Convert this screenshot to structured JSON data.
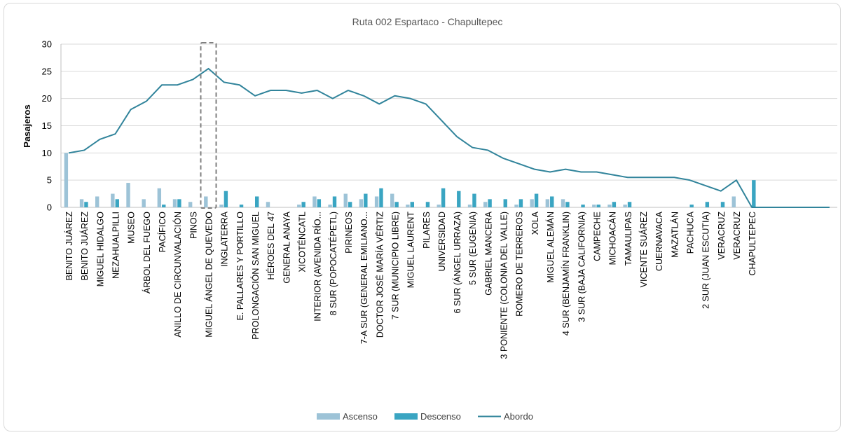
{
  "chart_data": {
    "type": "bar",
    "title": "Ruta 002 Espartaco - Chapultepec",
    "xlabel": "",
    "ylabel": "Pasajeros",
    "ylim": [
      0,
      30
    ],
    "yticks": [
      "0",
      "5",
      "10",
      "15",
      "20",
      "25",
      "30"
    ],
    "grid": true,
    "legend_position": "bottom",
    "categories": [
      "BENITO JUÁREZ",
      "BENITO JUÁREZ",
      "MIGUEL HIDALGO",
      "NEZAHUALPILLI",
      "MUSEO",
      "ÁRBOL DEL FUEGO",
      "PACÍFICO",
      "ANILLO DE CIRCUNVALACIÓN",
      "PINOS",
      "MIGUEL ÁNGEL DE QUEVEDO",
      "INGLATERRA",
      "E. PALLARES Y PORTILLO",
      "PROLONGACIÓN SAN MIGUEL",
      "HÉROES DEL 47",
      "GENERAL ANAYA",
      "XICOTÉNCATL",
      "INTERIOR (AVENIDA RÍO...",
      "8 SUR (POPOCATÉPETL)",
      "PIRINEOS",
      "7-A SUR (GENERAL EMILIANO...",
      "DOCTOR JOSÉ MARÍA VÉRTIZ",
      "7 SUR (MUNICIPIO LIBRE)",
      "MIGUEL LAURENT",
      "PILARES",
      "UNIVERSIDAD",
      "6 SUR (ÁNGEL URRAZA)",
      "5 SUR (EUGENIA)",
      "GABRIEL MANCERA",
      "3 PONIENTE (COLONIA DEL VALLE)",
      "ROMERO DE TERREROS",
      "XOLA",
      "MIGUEL ALEMÁN",
      "4 SUR (BENJAMÍN FRANKLIN)",
      "3 SUR (BAJA CALIFORNIA)",
      "CAMPECHE",
      "MICHOACÁN",
      "TAMAULIPAS",
      "VICENTE SUÁREZ",
      "CUERNAVACA",
      "MAZATLÁN",
      "PACHUCA",
      "2 SUR (JUAN ESCUTIA)",
      "VERACRUZ",
      "VERACRUZ",
      "CHAPULTEPEC",
      "",
      "",
      "",
      "",
      ""
    ],
    "series": [
      {
        "name": "Ascenso",
        "type": "bar",
        "color": "#9dc3d7",
        "values": [
          10,
          1.5,
          2,
          2.5,
          4.5,
          1.5,
          3.5,
          1.5,
          1,
          2,
          0.5,
          0,
          0,
          1,
          0,
          0.5,
          2,
          0.5,
          2.5,
          1.5,
          2,
          2.5,
          0.5,
          0,
          0.5,
          0,
          0.5,
          1,
          0,
          0.5,
          1.5,
          1.5,
          1.5,
          0,
          0.5,
          0.5,
          0.5,
          0,
          0,
          0,
          0,
          0,
          0,
          2,
          0,
          0,
          0,
          0,
          0,
          0
        ]
      },
      {
        "name": "Descenso",
        "type": "bar",
        "color": "#3aa5c2",
        "values": [
          0,
          1,
          0,
          1.5,
          0,
          0,
          0.5,
          1.5,
          0,
          0,
          3,
          0.5,
          2,
          0,
          0,
          1,
          1.5,
          2,
          1,
          2.5,
          3.5,
          1,
          1,
          1,
          3.5,
          3,
          2.5,
          1.5,
          1.5,
          1.5,
          2.5,
          2,
          1,
          0.5,
          0.5,
          1,
          1,
          0,
          0,
          0,
          0.5,
          1,
          1,
          0,
          5,
          0,
          0,
          0,
          0,
          0
        ]
      },
      {
        "name": "Abordo",
        "type": "line",
        "color": "#31849b",
        "values": [
          10,
          10.5,
          12.5,
          13.5,
          18,
          19.5,
          22.5,
          22.5,
          23.5,
          25.5,
          23,
          22.5,
          20.5,
          21.5,
          21.5,
          21,
          21.5,
          20,
          21.5,
          20.5,
          19,
          20.5,
          20,
          19,
          16,
          13,
          11,
          10.5,
          9,
          8,
          7,
          6.5,
          7,
          6.5,
          6.5,
          6,
          5.5,
          5.5,
          5.5,
          5.5,
          5,
          4,
          3,
          5,
          0,
          0,
          0,
          0,
          0,
          0
        ]
      }
    ],
    "highlight_category_index": 9
  }
}
